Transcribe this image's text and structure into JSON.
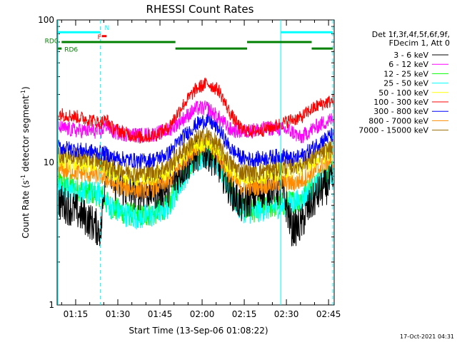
{
  "chart_data": {
    "type": "line",
    "title": "RHESSI Count Rates",
    "xlabel": "Start Time (13-Sep-06 01:08:22)",
    "ylabel_prefix": "Count Rate (s",
    "ylabel_sup": "-1",
    "ylabel_mid": " detector segment",
    "ylabel_sup2": "-1",
    "ylabel_suffix": ")",
    "y_scale": "log",
    "ylim": [
      1,
      100
    ],
    "xlim_minutes": [
      68.4,
      167.0
    ],
    "y_ticks": [
      {
        "label": "1",
        "v": 1
      },
      {
        "label": "10",
        "v": 10
      },
      {
        "label": "100",
        "v": 100
      }
    ],
    "x_ticks": [
      {
        "label": "01:15",
        "m": 75
      },
      {
        "label": "01:30",
        "m": 90
      },
      {
        "label": "01:45",
        "m": 105
      },
      {
        "label": "02:00",
        "m": 120
      },
      {
        "label": "02:15",
        "m": 135
      },
      {
        "label": "02:30",
        "m": 150
      },
      {
        "label": "02:45",
        "m": 165
      }
    ],
    "legend_header": [
      "Det 1f,3f,4f,5f,6f,9f,",
      "FDecim 1, Att 0"
    ],
    "legend_position": "top-right outside plot",
    "x_minutes": [
      69,
      75,
      80,
      84,
      86,
      88,
      93,
      98,
      103,
      108,
      113,
      118,
      122,
      126,
      130,
      134,
      138,
      142,
      146,
      149,
      152,
      155,
      158,
      162,
      166
    ],
    "series": [
      {
        "name": "3 - 6 keV",
        "color": "#000000",
        "noise": 0.06,
        "values": [
          5.3,
          4.6,
          3.9,
          3.3,
          10.5,
          7.5,
          6.3,
          6.2,
          6.3,
          6.6,
          9.0,
          11.5,
          11.8,
          9.5,
          6.5,
          5.0,
          5.8,
          6.5,
          6.8,
          6.0,
          3.4,
          3.6,
          4.8,
          6.3,
          7.2
        ]
      },
      {
        "name": "6 - 12 keV",
        "color": "#ff00ff",
        "noise": 0.025,
        "values": [
          17.5,
          16.8,
          16.7,
          16.4,
          18.5,
          16.5,
          15.8,
          15.5,
          15.8,
          16.8,
          20.0,
          24.0,
          24.0,
          20.5,
          17.0,
          16.5,
          16.8,
          17.2,
          17.5,
          17.0,
          16.5,
          14.8,
          16.5,
          18.5,
          20.0
        ]
      },
      {
        "name": "12 - 25 keV",
        "color": "#00ff00",
        "noise": 0.04,
        "values": [
          7.2,
          6.6,
          6.2,
          5.9,
          5.2,
          4.8,
          4.4,
          4.2,
          4.4,
          5.0,
          8.0,
          11.5,
          13.0,
          10.5,
          6.5,
          4.8,
          4.6,
          4.8,
          5.0,
          5.1,
          5.3,
          5.5,
          6.5,
          7.5,
          8.5
        ]
      },
      {
        "name": "25 - 50 keV",
        "color": "#00ffff",
        "noise": 0.04,
        "values": [
          6.4,
          6.3,
          6.1,
          6.0,
          5.3,
          4.8,
          4.3,
          4.1,
          4.3,
          4.9,
          7.5,
          10.5,
          11.5,
          9.5,
          6.2,
          4.6,
          4.5,
          4.7,
          4.9,
          5.0,
          5.2,
          5.4,
          6.2,
          7.2,
          8.2
        ]
      },
      {
        "name": "50 - 100 keV",
        "color": "#ffff00",
        "noise": 0.03,
        "values": [
          10.5,
          10.0,
          9.8,
          9.6,
          9.0,
          8.5,
          8.0,
          7.8,
          8.0,
          8.7,
          11.0,
          13.5,
          14.0,
          12.0,
          9.0,
          8.0,
          8.0,
          8.2,
          8.5,
          8.8,
          9.0,
          9.3,
          10.0,
          11.0,
          12.0
        ]
      },
      {
        "name": "100 - 300 keV",
        "color": "#ff0000",
        "noise": 0.022,
        "values": [
          22.0,
          21.0,
          20.0,
          19.0,
          20.0,
          17.5,
          16.0,
          15.0,
          15.5,
          17.5,
          25.0,
          33.0,
          36.0,
          32.0,
          22.0,
          17.0,
          16.5,
          17.0,
          18.0,
          19.0,
          20.0,
          20.5,
          23.0,
          25.5,
          27.0
        ]
      },
      {
        "name": "300 - 800 keV",
        "color": "#0000ff",
        "noise": 0.025,
        "values": [
          12.8,
          12.3,
          12.0,
          11.7,
          11.5,
          10.9,
          10.5,
          10.2,
          10.5,
          11.5,
          15.0,
          18.5,
          20.0,
          17.0,
          12.5,
          10.8,
          10.5,
          10.7,
          11.0,
          11.2,
          10.5,
          11.0,
          12.0,
          14.0,
          15.5
        ]
      },
      {
        "name": "800 - 7000 keV",
        "color": "#ff8c00",
        "noise": 0.03,
        "values": [
          9.0,
          8.6,
          8.3,
          8.1,
          7.6,
          7.1,
          6.6,
          6.4,
          6.6,
          7.3,
          10.0,
          12.8,
          13.5,
          11.0,
          8.0,
          6.8,
          6.7,
          6.9,
          7.1,
          7.3,
          7.1,
          7.4,
          8.2,
          9.2,
          10.5
        ]
      },
      {
        "name": "7000 - 15000 keV",
        "color": "#9a6a00",
        "noise": 0.03,
        "values": [
          11.5,
          11.0,
          10.6,
          10.3,
          9.8,
          9.2,
          8.7,
          8.4,
          8.6,
          9.4,
          12.0,
          14.5,
          15.5,
          13.0,
          9.8,
          8.6,
          8.5,
          8.7,
          9.0,
          9.3,
          9.5,
          9.8,
          10.5,
          11.5,
          12.5
        ]
      }
    ],
    "markers": {
      "lines": [
        {
          "m": 68.7,
          "color": "#00ffff",
          "style": "solid"
        },
        {
          "m": 83.8,
          "color": "#00ffff",
          "style": "dashed"
        },
        {
          "m": 148.0,
          "color": "#00ffff",
          "style": "solid"
        },
        {
          "m": 166.5,
          "color": "#00ffff",
          "style": "dashed"
        }
      ],
      "bars": [
        {
          "from": 68.7,
          "to": 83.8,
          "y": 82,
          "color": "#00ffff"
        },
        {
          "from": 148.0,
          "to": 166.5,
          "y": 82,
          "color": "#00ffff"
        },
        {
          "from": 84.3,
          "to": 86.0,
          "y": 77,
          "color": "#ff0000"
        },
        {
          "from": 70.0,
          "to": 110.5,
          "y": 70,
          "color": "#008000"
        },
        {
          "from": 110.5,
          "to": 136.0,
          "y": 63,
          "color": "#008000"
        },
        {
          "from": 136.0,
          "to": 159.0,
          "y": 70,
          "color": "#008000"
        },
        {
          "from": 159.0,
          "to": 166.5,
          "y": 63,
          "color": "#008000"
        },
        {
          "from": 68.7,
          "to": 70.0,
          "y": 63,
          "color": "#008000"
        }
      ],
      "labels": [
        {
          "text": "N",
          "m": 85.3,
          "y": 88,
          "color": "#00ffff"
        },
        {
          "text": "F",
          "m": 82.8,
          "y": 76,
          "color": "#ff0000"
        },
        {
          "text": "RD0",
          "m": 64.0,
          "y": 71,
          "color": "#008000"
        },
        {
          "text": "RD6",
          "m": 71.0,
          "y": 62,
          "color": "#008000"
        }
      ]
    }
  },
  "footer": "17-Oct-2021 04:31"
}
